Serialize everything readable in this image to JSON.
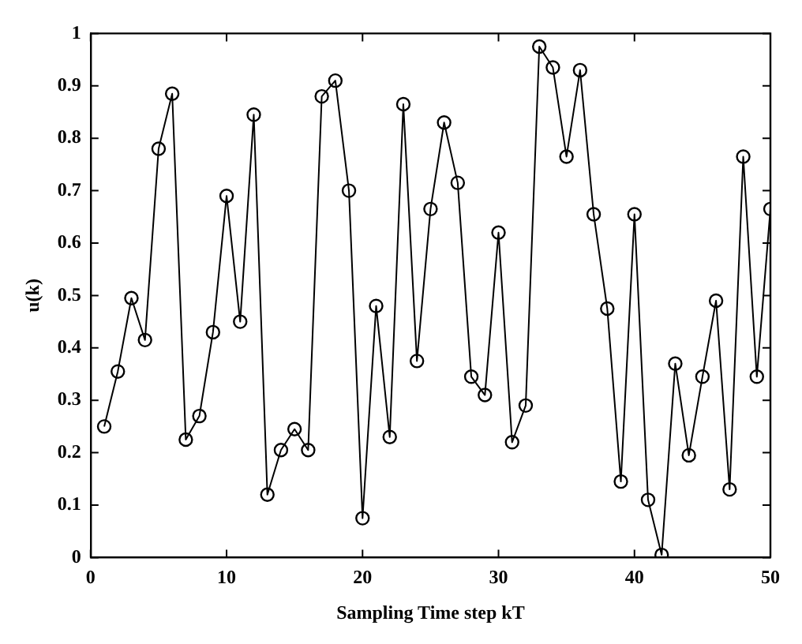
{
  "chart_data": {
    "type": "line",
    "xlabel": "Sampling Time step kT",
    "ylabel": "u(k)",
    "x": [
      1,
      2,
      3,
      4,
      5,
      6,
      7,
      8,
      9,
      10,
      11,
      12,
      13,
      14,
      15,
      16,
      17,
      18,
      19,
      20,
      21,
      22,
      23,
      24,
      25,
      26,
      27,
      28,
      29,
      30,
      31,
      32,
      33,
      34,
      35,
      36,
      37,
      38,
      39,
      40,
      41,
      42,
      43,
      44,
      45,
      46,
      47,
      48,
      49,
      50
    ],
    "series": [
      {
        "color": "#000000",
        "values": [
          0.25,
          0.355,
          0.495,
          0.415,
          0.78,
          0.885,
          0.225,
          0.27,
          0.43,
          0.69,
          0.45,
          0.845,
          0.12,
          0.205,
          0.245,
          0.205,
          0.88,
          0.91,
          0.7,
          0.075,
          0.48,
          0.23,
          0.865,
          0.375,
          0.665,
          0.83,
          0.715,
          0.345,
          0.31,
          0.62,
          0.22,
          0.29,
          0.975,
          0.935,
          0.765,
          0.93,
          0.655,
          0.475,
          0.145,
          0.655,
          0.11,
          0.005,
          0.37,
          0.195,
          0.345,
          0.49,
          0.13,
          0.765,
          0.345,
          0.665
        ]
      }
    ],
    "xlim": [
      0,
      50
    ],
    "xticks": [
      0,
      10,
      20,
      30,
      40,
      50
    ],
    "ylim": [
      0,
      1
    ],
    "yticks": [
      0,
      0.1,
      0.2,
      0.3,
      0.4,
      0.5,
      0.6,
      0.7,
      0.8,
      0.9,
      1
    ],
    "grid": false,
    "legend": false,
    "marker": "circle",
    "line_style": "solid"
  }
}
